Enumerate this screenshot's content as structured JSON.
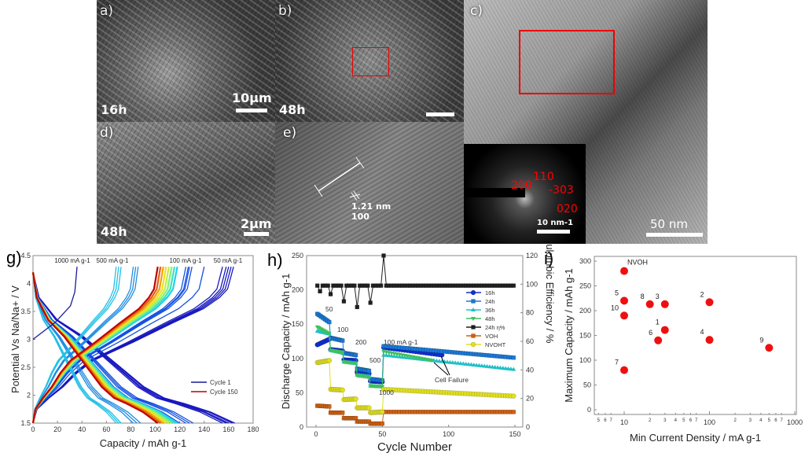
{
  "panels": {
    "a": {
      "label": "a)",
      "time": "16h",
      "scale": "10μm"
    },
    "b": {
      "label": "b)",
      "time": "48h"
    },
    "c": {
      "label": "c)",
      "scale": "50 nm",
      "saed": {
        "indices": [
          "200",
          "110",
          "-303",
          "020"
        ],
        "scale": "10 nm-1"
      }
    },
    "d": {
      "label": "d)",
      "time": "48h",
      "scale": "2μm"
    },
    "e": {
      "label": "e)",
      "spacing": "1.21 nm",
      "plane": "100"
    },
    "g": {
      "label": "g)"
    },
    "h": {
      "label": "h)"
    },
    "i": {
      "label": "i)"
    }
  },
  "chart_data": [
    {
      "type": "line",
      "title": "",
      "xlabel": "Capacity / mAh g-1",
      "ylabel": "Potential Vs Na/Na+ / V",
      "xlim": [
        0,
        180
      ],
      "ylim": [
        1.5,
        4.5
      ],
      "xticks": [
        "0",
        "20",
        "40",
        "60",
        "80",
        "100",
        "120",
        "140",
        "160",
        "180"
      ],
      "yticks": [
        "1.5",
        "2",
        "2.5",
        "3",
        "3.5",
        "4",
        "4.5"
      ],
      "annotations": [
        "1000 mA g-1",
        "500 mA g-1",
        "100 mA g-1",
        "50 mA g-1"
      ],
      "legend": {
        "position": "bottom-right",
        "entries": [
          {
            "name": "Cycle 1",
            "color": "#1a1a9a"
          },
          {
            "name": "Cycle 150",
            "color": "#c00000"
          }
        ]
      },
      "groups": [
        {
          "rate": "50 mA g-1",
          "color": "#1818c0",
          "charge": [
            155,
            158,
            160,
            162,
            164
          ],
          "discharge": [
            155,
            158,
            160,
            163,
            165
          ]
        },
        {
          "rate": "100 mA g-1",
          "color": "#1450e0",
          "charge": [
            125,
            127,
            128,
            130,
            140
          ],
          "discharge": [
            120,
            125,
            128,
            131
          ]
        },
        {
          "rate": "500 mA g-1",
          "color": "#1e8ce0",
          "charge": [
            82,
            84,
            86
          ],
          "discharge": [
            82,
            85,
            88
          ]
        },
        {
          "rate": "1000 mA g-1",
          "color": "#22c0e6",
          "charge": [
            68,
            70,
            72
          ],
          "discharge": [
            68,
            70,
            72
          ]
        },
        {
          "rate": "100 mA g-1 (cycles 51-150)",
          "colormap": "jet",
          "charge": [
            118,
            102
          ],
          "discharge": [
            118,
            102
          ]
        }
      ],
      "cycle1": {
        "charge_start": 3.0,
        "charge": 36,
        "discharge": 165
      }
    },
    {
      "type": "line",
      "xlabel": "Cycle Number",
      "ylabel": "Discharge Capacity / mAh g-1",
      "y2label": "Coulombic Efficiency / %",
      "xlim": [
        0,
        150
      ],
      "ylim": [
        0,
        250
      ],
      "y2lim": [
        0,
        120
      ],
      "xticks": [
        "0",
        "50",
        "100",
        "150"
      ],
      "yticks": [
        "0",
        "50",
        "100",
        "150",
        "200",
        "250"
      ],
      "y2ticks": [
        "0",
        "20",
        "40",
        "60",
        "80",
        "100",
        "120"
      ],
      "annotations": [
        "50",
        "100",
        "200",
        "500",
        "1000",
        "100 mA g-1",
        "Cell Failure"
      ],
      "series": [
        {
          "name": "16h",
          "color": "#1030d0",
          "marker": "circle",
          "segments": [
            [
              1,
              10,
              120,
              128
            ],
            [
              11,
              20,
              113,
              111
            ],
            [
              21,
              30,
              98,
              97
            ],
            [
              31,
              40,
              80,
              78
            ],
            [
              41,
              50,
              67,
              66
            ],
            [
              51,
              95,
              116,
              105
            ]
          ]
        },
        {
          "name": "24h",
          "color": "#1a78d8",
          "marker": "square",
          "segments": [
            [
              1,
              10,
              165,
              153
            ],
            [
              11,
              20,
              130,
              126
            ],
            [
              21,
              30,
              108,
              105
            ],
            [
              31,
              40,
              85,
              82
            ],
            [
              41,
              50,
              70,
              68
            ],
            [
              51,
              150,
              118,
              101
            ]
          ]
        },
        {
          "name": "36h",
          "color": "#20c0c8",
          "marker": "triangle-up",
          "segments": [
            [
              1,
              10,
              140,
              136
            ],
            [
              11,
              20,
              112,
              108
            ],
            [
              21,
              30,
              95,
              93
            ],
            [
              31,
              40,
              76,
              74
            ],
            [
              41,
              50,
              60,
              59
            ],
            [
              51,
              150,
              105,
              84
            ]
          ]
        },
        {
          "name": "48h",
          "color": "#40c060",
          "marker": "triangle-down",
          "segments": [
            [
              1,
              10,
              146,
              136
            ],
            [
              11,
              20,
              112,
              109
            ],
            [
              21,
              30,
              95,
              93
            ],
            [
              31,
              40,
              75,
              73
            ],
            [
              41,
              50,
              60,
              59
            ],
            [
              51,
              88,
              110,
              97
            ]
          ]
        },
        {
          "name": "24h η%",
          "color": "#202020",
          "marker": "square",
          "axis": "right",
          "segments": [
            [
              1,
              150,
              99,
              99
            ]
          ],
          "dips": [
            [
              2,
              120
            ],
            [
              3,
              95
            ],
            [
              11,
              93
            ],
            [
              21,
              88
            ],
            [
              31,
              84
            ],
            [
              41,
              87
            ],
            [
              51,
              120
            ]
          ]
        },
        {
          "name": "VOH",
          "color": "#d06010",
          "marker": "square",
          "segments": [
            [
              1,
              10,
              31,
              30
            ],
            [
              11,
              20,
              21,
              21
            ],
            [
              21,
              30,
              13,
              13
            ],
            [
              31,
              40,
              8,
              8
            ],
            [
              41,
              50,
              5,
              5
            ],
            [
              51,
              150,
              22,
              22
            ]
          ]
        },
        {
          "name": "NVOHT",
          "color": "#e0e020",
          "marker": "circle",
          "segments": [
            [
              1,
              10,
              94,
              97
            ],
            [
              11,
              20,
              55,
              54
            ],
            [
              21,
              30,
              40,
              41
            ],
            [
              31,
              40,
              28,
              28
            ],
            [
              41,
              50,
              21,
              22
            ],
            [
              51,
              150,
              55,
              45
            ]
          ]
        }
      ]
    },
    {
      "type": "scatter",
      "xlabel": "Min Current Density / mA g-1",
      "ylabel": "Maximum Capacity / mAh g-1",
      "xscale": "log",
      "xlim": [
        4.5,
        1000
      ],
      "ylim": [
        0,
        300
      ],
      "xticks": [
        "5",
        "6",
        "7",
        "10",
        "2",
        "3",
        "4",
        "5",
        "6",
        "7",
        "100",
        "2",
        "3",
        "4",
        "5",
        "6",
        "7",
        "1000"
      ],
      "yticks": [
        "0",
        "50",
        "100",
        "150",
        "200",
        "250",
        "300"
      ],
      "points": [
        {
          "label": "NVOH",
          "x": 10,
          "y": 280
        },
        {
          "label": "5",
          "x": 10,
          "y": 220
        },
        {
          "label": "10",
          "x": 10,
          "y": 190
        },
        {
          "label": "8",
          "x": 20,
          "y": 213
        },
        {
          "label": "3",
          "x": 30,
          "y": 213
        },
        {
          "label": "2",
          "x": 100,
          "y": 217
        },
        {
          "label": "1",
          "x": 30,
          "y": 161
        },
        {
          "label": "6",
          "x": 25,
          "y": 140
        },
        {
          "label": "4",
          "x": 100,
          "y": 141
        },
        {
          "label": "9",
          "x": 500,
          "y": 125
        },
        {
          "label": "7",
          "x": 10,
          "y": 80
        }
      ],
      "color": "#ee1010"
    }
  ]
}
